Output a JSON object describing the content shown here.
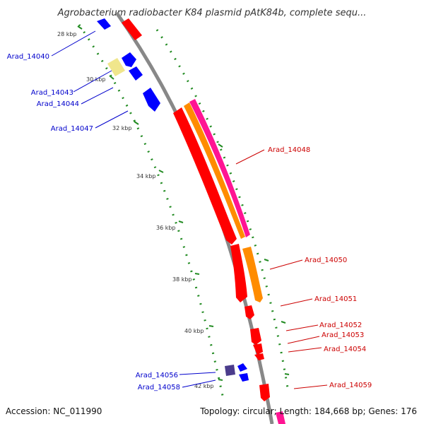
{
  "header": {
    "title": "Agrobacterium radiobacter K84 plasmid pAtK84b, complete sequ..."
  },
  "footer": {
    "accession": "Accession: NC_011990",
    "stats": "Topology: circular; Length: 184,668 bp; Genes: 176"
  },
  "colors": {
    "backbone": "#888888",
    "tick": "#228B22",
    "forward_label": "#cc0000",
    "reverse_label": "#0000cc",
    "red": "#ff0000",
    "orange": "#ff8c00",
    "magenta": "#ff1493",
    "blue": "#0000ff",
    "purple": "#4b3c8c",
    "pale_yellow": "#f0e68c"
  },
  "map": {
    "scale_labels": [
      "28 kbp",
      "30 kbp",
      "32 kbp",
      "34 kbp",
      "36 kbp",
      "38 kbp",
      "40 kbp",
      "42 kbp"
    ],
    "forward_genes": [
      "Arad_14048",
      "Arad_14050",
      "Arad_14051",
      "Arad_14052",
      "Arad_14053",
      "Arad_14054",
      "Arad_14059"
    ],
    "reverse_genes": [
      "Arad_14040",
      "Arad_14043",
      "Arad_14044",
      "Arad_14047",
      "Arad_14056",
      "Arad_14058"
    ]
  }
}
